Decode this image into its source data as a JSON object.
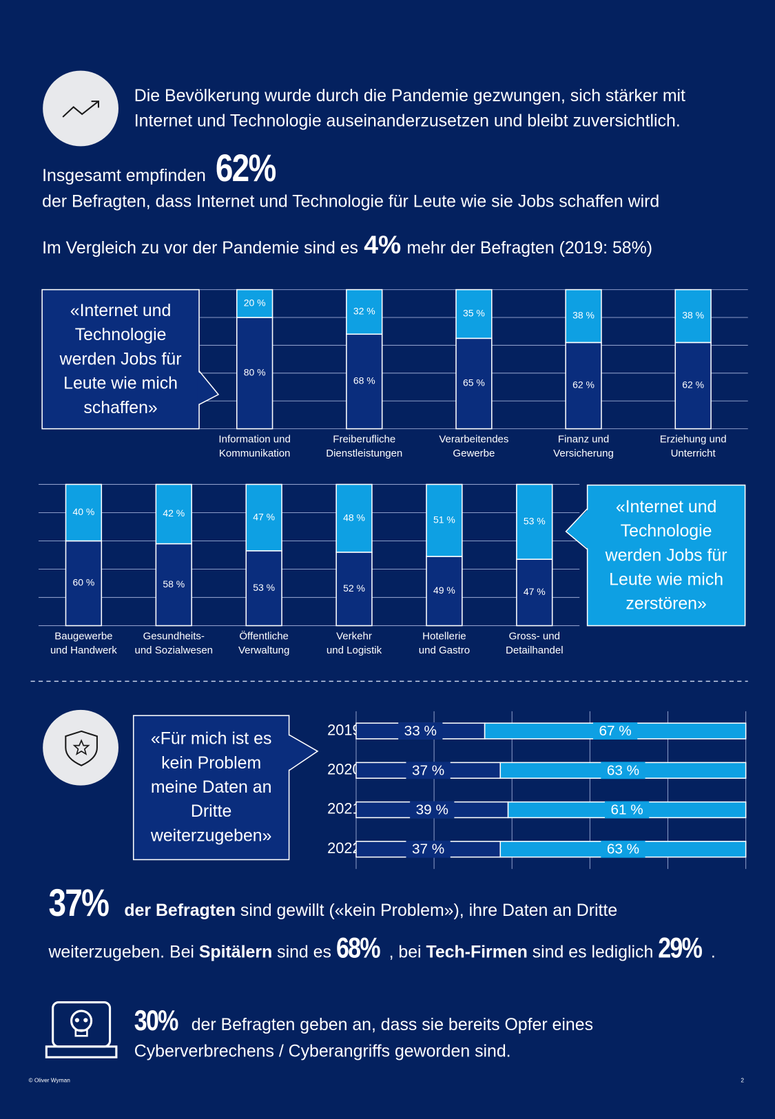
{
  "header": {
    "text": "Die Bevölkerung wurde durch die Pandemie gezwungen, sich stärker mit\nInternet und Technologie auseinanderzusetzen und bleibt zuversichtlich."
  },
  "stat_1": {
    "lead": "Insgesamt empfinden",
    "figure": "62%",
    "text": "der Befragten, dass Internet und Technologie für Leute wie sie Jobs schaffen wird"
  },
  "stat_2": {
    "lead": "Im Vergleich zu vor der Pandemie sind es",
    "figure": "4%",
    "tail": "mehr der Befragten (2019: 58%)"
  },
  "chart_data": [
    {
      "type": "stacked_bar",
      "categories": [
        "Information und\nKommunikation",
        "Freiberufliche\nDienstleistungen",
        "Verarbeitendes\nGewerbe",
        "Finanz und\nVersicherung",
        "Erziehung und\nUnterricht"
      ],
      "series": [
        {
          "name": "«Internet und\nTechnologie\nwerden Jobs für\nLeute wie mich\nschaffen»",
          "color": "#0a2d7d",
          "values": [
            80,
            68,
            65,
            62,
            62
          ],
          "value_labels": [
            "80 %",
            "68 %",
            "65 %",
            "62 %",
            "62 %"
          ]
        },
        {
          "color": "#0ea0e3",
          "values": [
            20,
            32,
            35,
            38,
            38
          ],
          "value_labels": [
            "20 %",
            "32 %",
            "35 %",
            "38 %",
            "38 %"
          ]
        }
      ],
      "ylim": [
        0,
        100
      ],
      "yticks": [
        0,
        20,
        40,
        60,
        80,
        100
      ],
      "grid": true
    },
    {
      "type": "stacked_bar",
      "categories": [
        "Baugewerbe\nund Handwerk",
        "Gesundheits-\nund Sozialwesen",
        "Öffentliche\nVerwaltung",
        "Verkehr\nund Logistik",
        "Hotellerie\nund Gastro",
        "Gross- und\nDetailhandel"
      ],
      "series": [
        {
          "color": "#0a2d7d",
          "values": [
            60,
            58,
            53,
            52,
            49,
            47
          ],
          "value_labels": [
            "60 %",
            "58 %",
            "53 %",
            "52 %",
            "49 %",
            "47 %"
          ]
        },
        {
          "name": "«Internet und\nTechnologie\nwerden Jobs für\nLeute wie mich\nzerstören»",
          "color": "#0ea0e3",
          "values": [
            40,
            42,
            47,
            48,
            51,
            53
          ],
          "value_labels": [
            "40 %",
            "42 %",
            "47 %",
            "48 %",
            "51 %",
            "53 %"
          ]
        }
      ],
      "ylim": [
        0,
        100
      ],
      "yticks": [
        0,
        20,
        40,
        60,
        80,
        100
      ],
      "grid": true
    },
    {
      "type": "stacked_barh",
      "categories": [
        "2019",
        "2020",
        "2021",
        "2022"
      ],
      "series": [
        {
          "name": "«Für mich ist es\nkein Problem\nmeine Daten an\nDritte\nweiterzugeben»",
          "color": "#0a2d7d",
          "values": [
            33,
            37,
            39,
            37
          ],
          "value_labels": [
            "33 %",
            "37 %",
            "39 %",
            "37 %"
          ]
        },
        {
          "color": "#0ea0e3",
          "values": [
            67,
            63,
            61,
            63
          ],
          "value_labels": [
            "67 %",
            "63 %",
            "61 %",
            "63 %"
          ]
        }
      ],
      "xlim": [
        0,
        100
      ],
      "xticks": [
        0,
        20,
        40,
        60,
        80,
        100
      ],
      "grid": true
    }
  ],
  "stat_3": {
    "parts": [
      "37%",
      "der Befragten",
      " sind gewillt («kein Problem»), ihre Daten an Dritte\nweiterzugeben. Bei ",
      "Spitälern",
      " sind es ",
      "68%",
      ", bei ",
      "Tech-Firmen",
      " sind es lediglich ",
      "29%",
      "."
    ]
  },
  "stat_4": {
    "figure": "30%",
    "text": "der Befragten geben an, dass sie bereits Opfer eines\nCyberverbrechens / Cyberangriffs geworden sind."
  },
  "footer": {
    "copyright": "© Oliver Wyman",
    "page": "2"
  }
}
